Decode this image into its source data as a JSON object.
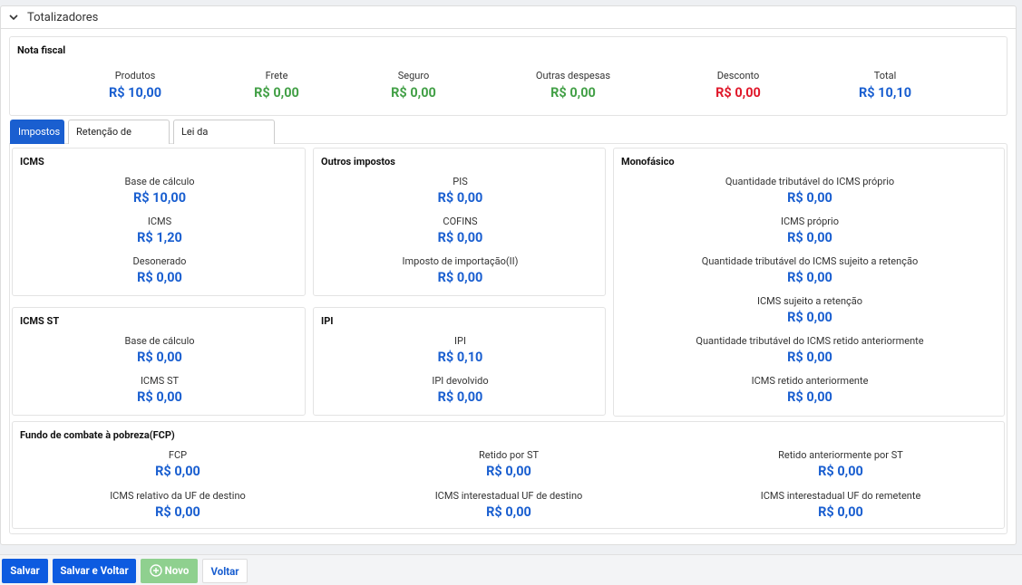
{
  "header": {
    "title": "Totalizadores"
  },
  "nota_fiscal": {
    "title": "Nota fiscal",
    "items": [
      {
        "label": "Produtos",
        "value": "R$ 10,00",
        "color": "#1a5fd0"
      },
      {
        "label": "Frete",
        "value": "R$ 0,00",
        "color": "#43a047"
      },
      {
        "label": "Seguro",
        "value": "R$ 0,00",
        "color": "#43a047"
      },
      {
        "label": "Outras despesas",
        "value": "R$ 0,00",
        "color": "#43a047"
      },
      {
        "label": "Desconto",
        "value": "R$ 0,00",
        "color": "#e0192b"
      },
      {
        "label": "Total",
        "value": "R$ 10,10",
        "color": "#1a5fd0"
      }
    ]
  },
  "tabs": [
    "Impostos",
    "Retenção de tributos",
    "Lei da transparência"
  ],
  "cards": [
    {
      "title": "ICMS",
      "items": [
        {
          "label": "Base de cálculo",
          "value": "R$ 10,00"
        },
        {
          "label": "ICMS",
          "value": "R$ 1,20"
        },
        {
          "label": "Desonerado",
          "value": "R$ 0,00"
        }
      ]
    },
    {
      "title": "Outros impostos",
      "items": [
        {
          "label": "PIS",
          "value": "R$ 0,00"
        },
        {
          "label": "COFINS",
          "value": "R$ 0,00"
        },
        {
          "label": "Imposto de importação(II)",
          "value": "R$ 0,00"
        }
      ]
    },
    {
      "title": "Monofásico",
      "items": [
        {
          "label": "Quantidade tributável do ICMS próprio",
          "value": "R$ 0,00"
        },
        {
          "label": "ICMS próprio",
          "value": "R$ 0,00"
        },
        {
          "label": "Quantidade tributável do ICMS sujeito a retenção",
          "value": "R$ 0,00"
        },
        {
          "label": "ICMS sujeito a retenção",
          "value": "R$ 0,00"
        },
        {
          "label": "Quantidade tributável do ICMS retido anteriormente",
          "value": "R$ 0,00"
        },
        {
          "label": "ICMS retido anteriormente",
          "value": "R$ 0,00"
        }
      ]
    },
    {
      "title": "ICMS ST",
      "items": [
        {
          "label": "Base de cálculo",
          "value": "R$ 0,00"
        },
        {
          "label": "ICMS ST",
          "value": "R$ 0,00"
        }
      ]
    },
    {
      "title": "IPI",
      "items": [
        {
          "label": "IPI",
          "value": "R$ 0,10"
        },
        {
          "label": "IPI devolvido",
          "value": "R$ 0,00"
        }
      ]
    },
    {
      "title": "Fundo de combate à pobreza(FCP)",
      "items": [
        {
          "label": "FCP",
          "value": "R$ 0,00"
        },
        {
          "label": "Retido por ST",
          "value": "R$ 0,00"
        },
        {
          "label": "Retido anteriormente por ST",
          "value": "R$ 0,00"
        },
        {
          "label": "ICMS relativo da UF de destino",
          "value": "R$ 0,00"
        },
        {
          "label": "ICMS interestadual UF de destino",
          "value": "R$ 0,00"
        },
        {
          "label": "ICMS interestadual UF do remetente",
          "value": "R$ 0,00"
        }
      ]
    }
  ],
  "buttons": [
    "Salvar",
    "Salvar e Voltar",
    "Novo",
    "Voltar"
  ]
}
